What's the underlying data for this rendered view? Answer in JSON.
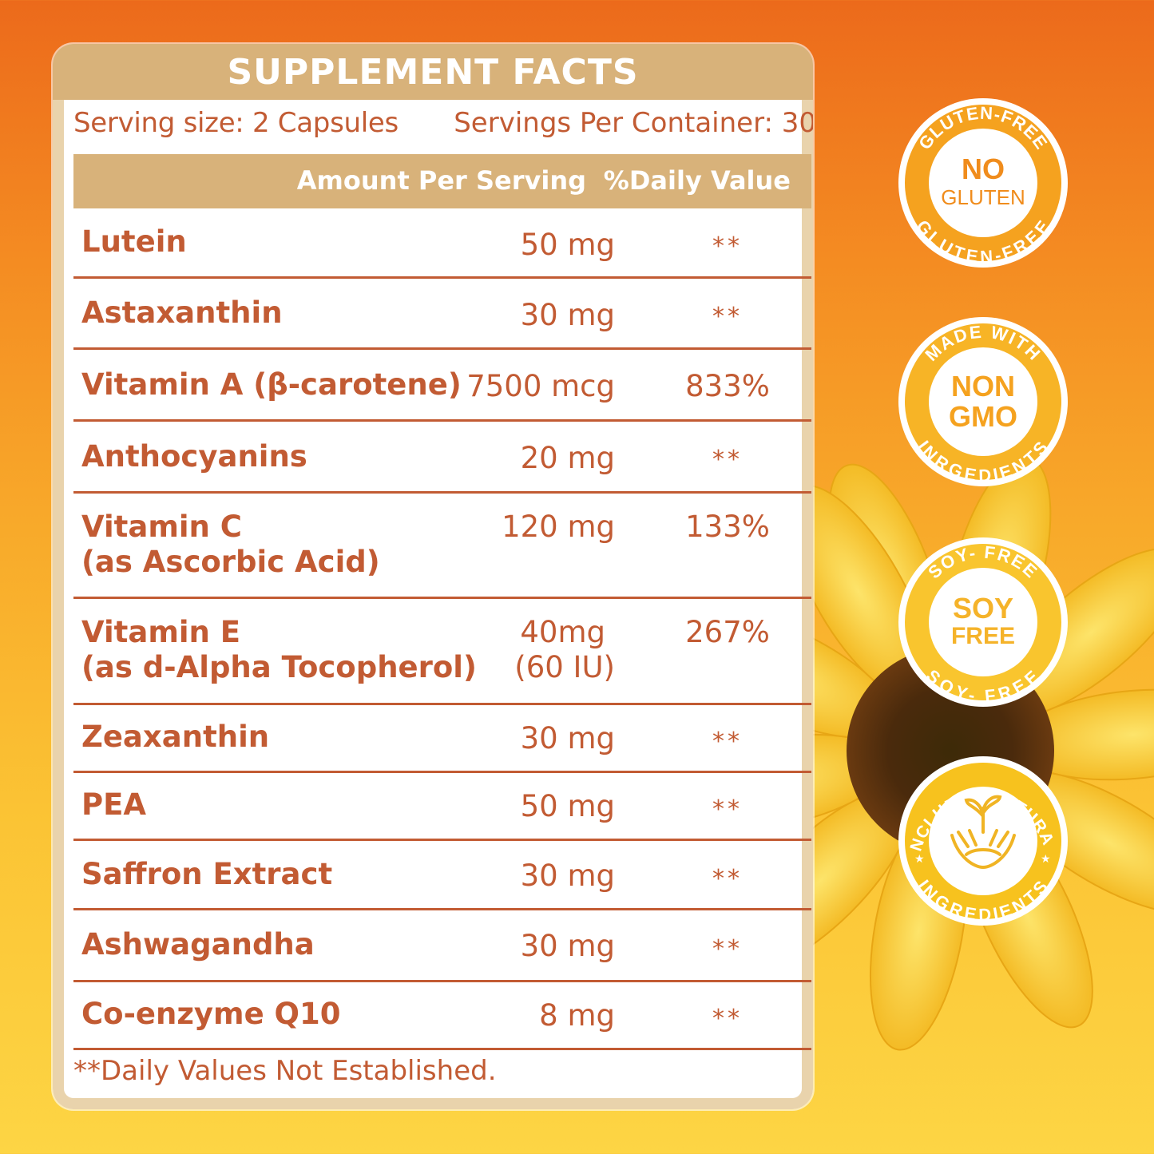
{
  "panel": {
    "title": "SUPPLEMENT FACTS",
    "serving_size": "Serving size: 2 Capsules",
    "servings_per_container": "Servings Per Container: 30",
    "col_amount": "Amount Per Serving",
    "col_dv": "%Daily Value",
    "rows": [
      {
        "name": "Lutein",
        "name2": "",
        "amount": "50 mg",
        "amount2": "",
        "dv": "**"
      },
      {
        "name": "Astaxanthin",
        "name2": "",
        "amount": "30 mg",
        "amount2": "",
        "dv": "**"
      },
      {
        "name": "Vitamin A (β-carotene)",
        "name2": "",
        "amount": "7500 mcg",
        "amount2": "",
        "dv": "833%"
      },
      {
        "name": "Anthocyanins",
        "name2": "",
        "amount": "20 mg",
        "amount2": "",
        "dv": "**"
      },
      {
        "name": "Vitamin C",
        "name2": "(as Ascorbic Acid)",
        "amount": "120 mg",
        "amount2": "",
        "dv": "133%"
      },
      {
        "name": "Vitamin E",
        "name2": "(as d-Alpha Tocopherol)",
        "amount": "40mg",
        "amount2": "(60 IU)",
        "dv": "267%"
      },
      {
        "name": "Zeaxanthin",
        "name2": "",
        "amount": "30 mg",
        "amount2": "",
        "dv": "**"
      },
      {
        "name": "PEA",
        "name2": "",
        "amount": "50 mg",
        "amount2": "",
        "dv": "**"
      },
      {
        "name": "Saffron Extract",
        "name2": "",
        "amount": "30 mg",
        "amount2": "",
        "dv": "**"
      },
      {
        "name": "Ashwagandha",
        "name2": "",
        "amount": "30 mg",
        "amount2": "",
        "dv": "**"
      },
      {
        "name": "Co-enzyme Q10",
        "name2": "",
        "amount": "8 mg",
        "amount2": "",
        "dv": "**"
      }
    ],
    "footnote": "**Daily Values Not Established."
  },
  "badges": [
    {
      "top_text": "GLUTEN-FREE",
      "line1": "NO",
      "line2": "GLUTEN",
      "bottom_text": "GLUTEN-FREE"
    },
    {
      "top_text": "MADE WITH",
      "line1": "NON",
      "line2": "GMO",
      "bottom_text": "INRGEDIENTS"
    },
    {
      "top_text": "SOY- FREE",
      "line1": "SOY",
      "line2": "FREE",
      "bottom_text": "SOY- FREE"
    },
    {
      "top_text": "INCLUDES NATURAL",
      "line1": "",
      "line2": "",
      "bottom_text": "INGREDIENTS",
      "icon": "hands-sprout-icon"
    }
  ],
  "colors": {
    "brand_orange": "#c25b33",
    "header_tan": "#d8b27a"
  }
}
